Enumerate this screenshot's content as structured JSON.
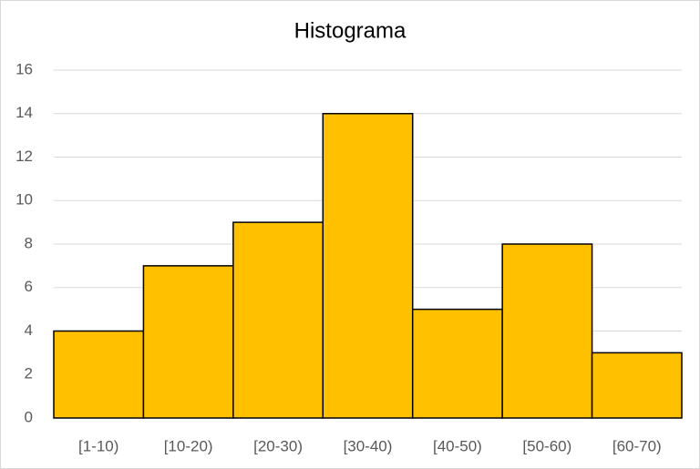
{
  "chart_data": {
    "type": "bar",
    "title": "Histograma",
    "categories": [
      "[1-10)",
      "[10-20)",
      "[20-30)",
      "[30-40)",
      "[40-50)",
      "[50-60)",
      "[60-70)"
    ],
    "values": [
      4,
      7,
      9,
      14,
      5,
      8,
      3
    ],
    "color": "#ffc000",
    "edge_color": "#000000",
    "ylim": [
      0,
      16
    ],
    "yticks": [
      0,
      2,
      4,
      6,
      8,
      10,
      12,
      14,
      16
    ],
    "grid": true
  }
}
